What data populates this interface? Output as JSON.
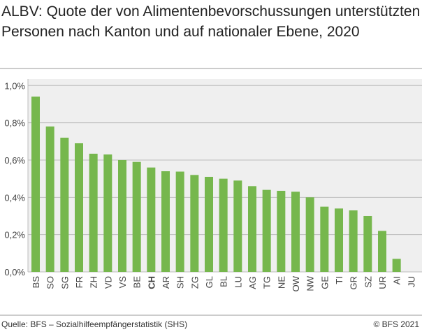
{
  "chart_data": {
    "type": "bar",
    "title": "ALBV: Quote der von Alimentenbevorschussungen unterstützten Personen nach Kanton und auf nationaler Ebene, 2020",
    "categories": [
      "BS",
      "SO",
      "SG",
      "FR",
      "ZH",
      "VD",
      "VS",
      "BE",
      "CH",
      "AR",
      "SH",
      "ZG",
      "GL",
      "BL",
      "LU",
      "AG",
      "TG",
      "NE",
      "OW",
      "NW",
      "GE",
      "TI",
      "GR",
      "SZ",
      "UR",
      "AI",
      "JU"
    ],
    "values": [
      0.94,
      0.78,
      0.72,
      0.69,
      0.634,
      0.63,
      0.6,
      0.59,
      0.56,
      0.54,
      0.538,
      0.52,
      0.51,
      0.5,
      0.49,
      0.46,
      0.44,
      0.435,
      0.43,
      0.4,
      0.35,
      0.34,
      0.33,
      0.3,
      0.22,
      0.07,
      null
    ],
    "highlight_category": "CH",
    "ylim": [
      0,
      1.0
    ],
    "yticks": [
      "0,0%",
      "0,2%",
      "0,4%",
      "0,6%",
      "0,8%",
      "1,0%"
    ],
    "xlabel": "",
    "ylabel": "",
    "grid": true,
    "colors": {
      "bar": "#76b74d",
      "plot_bg": "#efefef",
      "grid": "#bdbdbd"
    }
  },
  "footer": {
    "source": "Quelle: BFS – Sozialhilfeempfängerstatistik (SHS)",
    "copyright": "© BFS 2021"
  }
}
